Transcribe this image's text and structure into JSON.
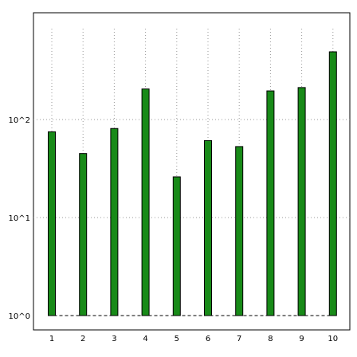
{
  "chart_data": {
    "type": "bar",
    "scale_y": "log",
    "categories": [
      "1",
      "2",
      "3",
      "4",
      "5",
      "6",
      "7",
      "8",
      "9",
      "10"
    ],
    "values": [
      75,
      45,
      81,
      205,
      26,
      61,
      53,
      196,
      212,
      491
    ],
    "yticks": [
      1,
      10,
      100
    ],
    "ytick_labels": [
      "10^0",
      "10^1",
      "10^2"
    ],
    "ylim": [
      1,
      1000
    ],
    "grid": true,
    "legend": "none",
    "baseline_style": "dashed",
    "colors": {
      "bar_fill": "#188a18",
      "bar_stroke": "#000000",
      "grid": "#9a9a9a",
      "axis": "#000000"
    }
  }
}
